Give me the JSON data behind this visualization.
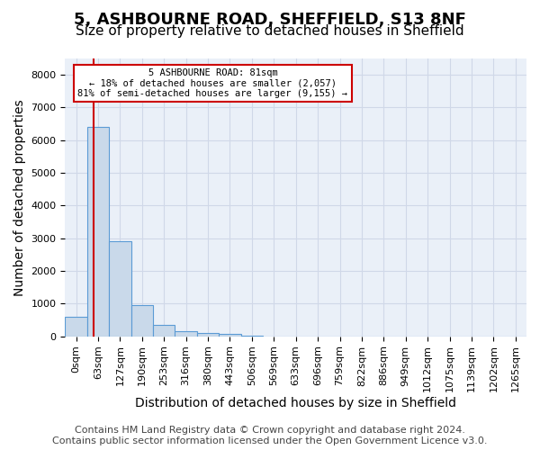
{
  "title": "5, ASHBOURNE ROAD, SHEFFIELD, S13 8NF",
  "subtitle": "Size of property relative to detached houses in Sheffield",
  "xlabel": "Distribution of detached houses by size in Sheffield",
  "ylabel": "Number of detached properties",
  "bar_values": [
    600,
    6400,
    2900,
    950,
    350,
    150,
    100,
    70,
    10,
    5,
    3,
    2,
    1,
    1,
    0,
    0,
    0,
    0,
    0,
    0,
    0
  ],
  "bar_labels": [
    "0sqm",
    "63sqm",
    "127sqm",
    "190sqm",
    "253sqm",
    "316sqm",
    "380sqm",
    "443sqm",
    "506sqm",
    "569sqm",
    "633sqm",
    "696sqm",
    "759sqm",
    "822sqm",
    "886sqm",
    "949sqm",
    "1012sqm",
    "1075sqm",
    "1139sqm",
    "1202sqm",
    "1265sqm"
  ],
  "bar_color": "#c9d9ea",
  "bar_edge_color": "#5b9bd5",
  "grid_color": "#d0d8e8",
  "background_color": "#eaf0f8",
  "vline_color": "#cc0000",
  "vline_pos": 0.78,
  "annotation_text": "5 ASHBOURNE ROAD: 81sqm\n← 18% of detached houses are smaller (2,057)\n81% of semi-detached houses are larger (9,155) →",
  "annotation_box_color": "#cc0000",
  "ylim": [
    0,
    8500
  ],
  "yticks": [
    0,
    1000,
    2000,
    3000,
    4000,
    5000,
    6000,
    7000,
    8000
  ],
  "footer_line1": "Contains HM Land Registry data © Crown copyright and database right 2024.",
  "footer_line2": "Contains public sector information licensed under the Open Government Licence v3.0.",
  "title_fontsize": 13,
  "subtitle_fontsize": 11,
  "tick_fontsize": 8,
  "ylabel_fontsize": 10,
  "xlabel_fontsize": 10,
  "footer_fontsize": 8
}
